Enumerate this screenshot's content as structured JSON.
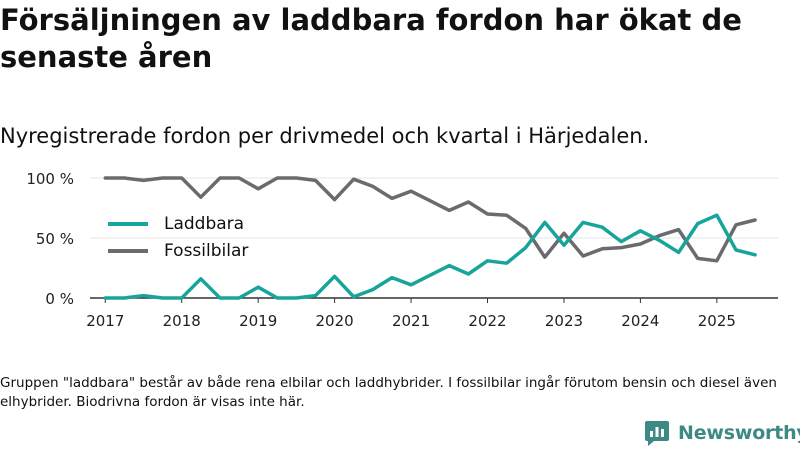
{
  "title": "Försäljningen av laddbara fordon har ökat de senaste åren",
  "subtitle": "Nyregistrerade fordon per drivmedel och kvartal i Härjedalen.",
  "footnote": "Gruppen \"laddbara\" består av både rena elbilar och laddhybrider. I fossilbilar ingår förutom bensin och diesel även elhybrider. Biodrivna fordon är visas inte här.",
  "brand": {
    "name": "Newsworthy",
    "icon": "newsworthy-logo-icon"
  },
  "colors": {
    "laddbara": "#17a59b",
    "fossil": "#6b6b6f",
    "grid": "#e6e6e6",
    "axis": "#333333",
    "brand": "#3d8a85"
  },
  "chart_data": {
    "type": "line",
    "title": "Försäljningen av laddbara fordon har ökat de senaste åren",
    "subtitle": "Nyregistrerade fordon per drivmedel och kvartal i Härjedalen.",
    "xlabel": "",
    "ylabel": "",
    "x": [
      2017.0,
      2017.25,
      2017.5,
      2017.75,
      2018.0,
      2018.25,
      2018.5,
      2018.75,
      2019.0,
      2019.25,
      2019.5,
      2019.75,
      2020.0,
      2020.25,
      2020.5,
      2020.75,
      2021.0,
      2021.25,
      2021.5,
      2021.75,
      2022.0,
      2022.25,
      2022.5,
      2022.75,
      2023.0,
      2023.25,
      2023.5,
      2023.75,
      2024.0,
      2024.25,
      2024.5,
      2024.75,
      2025.0,
      2025.25,
      2025.5
    ],
    "xlim": [
      2016.8,
      2025.8
    ],
    "ylim": [
      0,
      100
    ],
    "xticks": [
      2017,
      2018,
      2019,
      2020,
      2021,
      2022,
      2023,
      2024,
      2025
    ],
    "xtick_labels": [
      "2017",
      "2018",
      "2019",
      "2020",
      "2021",
      "2022",
      "2023",
      "2024",
      "2025"
    ],
    "yticks": [
      0,
      50,
      100
    ],
    "ytick_labels": [
      "0 %",
      "50 %",
      "100 %"
    ],
    "grid": true,
    "legend_position": "center-left",
    "series": [
      {
        "name": "Laddbara",
        "color": "#17a59b",
        "values": [
          0,
          0,
          2,
          0,
          0,
          16,
          0,
          0,
          9,
          0,
          0,
          2,
          18,
          1,
          7,
          17,
          11,
          19,
          27,
          20,
          31,
          29,
          42,
          63,
          44,
          63,
          59,
          47,
          56,
          48,
          38,
          62,
          69,
          40,
          36
        ]
      },
      {
        "name": "Fossilbilar",
        "color": "#6b6b6f",
        "values": [
          100,
          100,
          98,
          100,
          100,
          84,
          100,
          100,
          91,
          100,
          100,
          98,
          82,
          99,
          93,
          83,
          89,
          81,
          73,
          80,
          70,
          69,
          58,
          34,
          54,
          35,
          41,
          42,
          45,
          52,
          57,
          33,
          31,
          61,
          65
        ]
      }
    ]
  }
}
